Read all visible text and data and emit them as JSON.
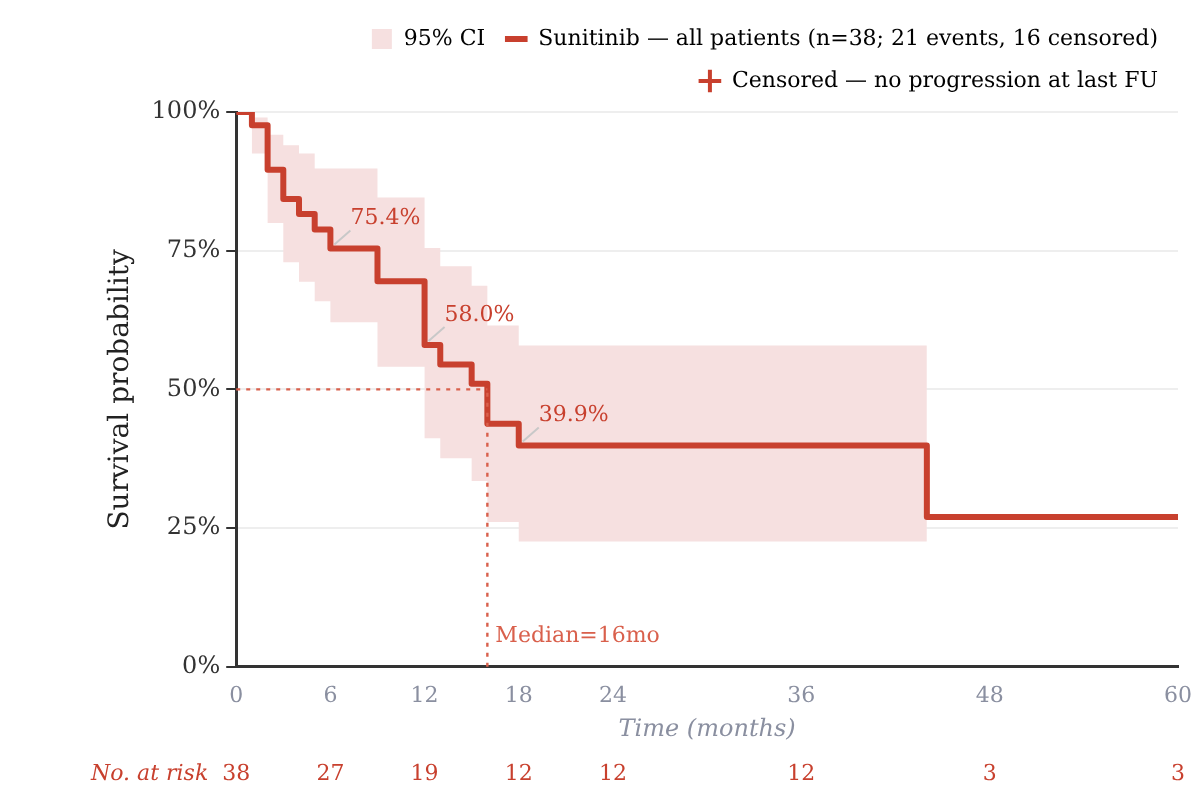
{
  "chart_data": {
    "type": "step",
    "xlabel": "Time (months)",
    "ylabel": "Survival probability",
    "xlim": [
      0,
      60
    ],
    "xticks": [
      0,
      6,
      12,
      18,
      24,
      36,
      48,
      60
    ],
    "ylim": [
      0,
      100
    ],
    "yticks": [
      {
        "value": 0,
        "label": "0%"
      },
      {
        "value": 25,
        "label": "25%"
      },
      {
        "value": 50,
        "label": "50%"
      },
      {
        "value": 75,
        "label": "75%"
      },
      {
        "value": 100,
        "label": "100%"
      }
    ],
    "grid": "y",
    "legend": "top right",
    "series": [
      {
        "name": "Sunitinib — all patients (n=38; 21 events, 16 censored)",
        "type": "step",
        "color": "#c8402e",
        "x": [
          0,
          1,
          2,
          3,
          4,
          5,
          6,
          9,
          12,
          13,
          15,
          16,
          18,
          44,
          60
        ],
        "values": [
          100,
          97.6,
          89.6,
          84.3,
          81.6,
          78.8,
          75.4,
          69.5,
          58.0,
          54.5,
          51.0,
          43.8,
          39.9,
          27.0,
          27.0
        ],
        "lower": [
          100,
          92.5,
          80,
          72.9,
          69.4,
          65.9,
          62.1,
          54.1,
          41.2,
          37.6,
          33.5,
          26.1,
          22.6,
          22.6,
          null
        ],
        "upper": [
          100,
          99,
          95.9,
          94,
          92.5,
          89.8,
          89.8,
          84.6,
          75.5,
          72.2,
          68.7,
          61.5,
          57.9,
          57.9,
          null
        ]
      },
      {
        "name": "95% CI",
        "type": "area",
        "color": "#f6e0e0"
      },
      {
        "name": "Censored — no progression at last FU",
        "type": "scatter",
        "marker": "cross",
        "color": "#c8402e"
      }
    ],
    "ref_lines": [
      {
        "axis": "y",
        "value": 50,
        "color": "#d9604c",
        "line_style": "dotted"
      },
      {
        "axis": "x",
        "value": 16,
        "label": "Median=16mo",
        "color": "#d9604c",
        "line_style": "dotted"
      }
    ],
    "annotations": [
      {
        "text": "75.4%",
        "x": 6,
        "y": 75.4
      },
      {
        "text": "58.0%",
        "x": 12,
        "y": 58.0
      },
      {
        "text": "39.9%",
        "x": 18,
        "y": 39.9
      },
      "No. at risk",
      "38",
      "27",
      "19",
      "12",
      "12",
      "12",
      "3",
      "3"
    ]
  }
}
